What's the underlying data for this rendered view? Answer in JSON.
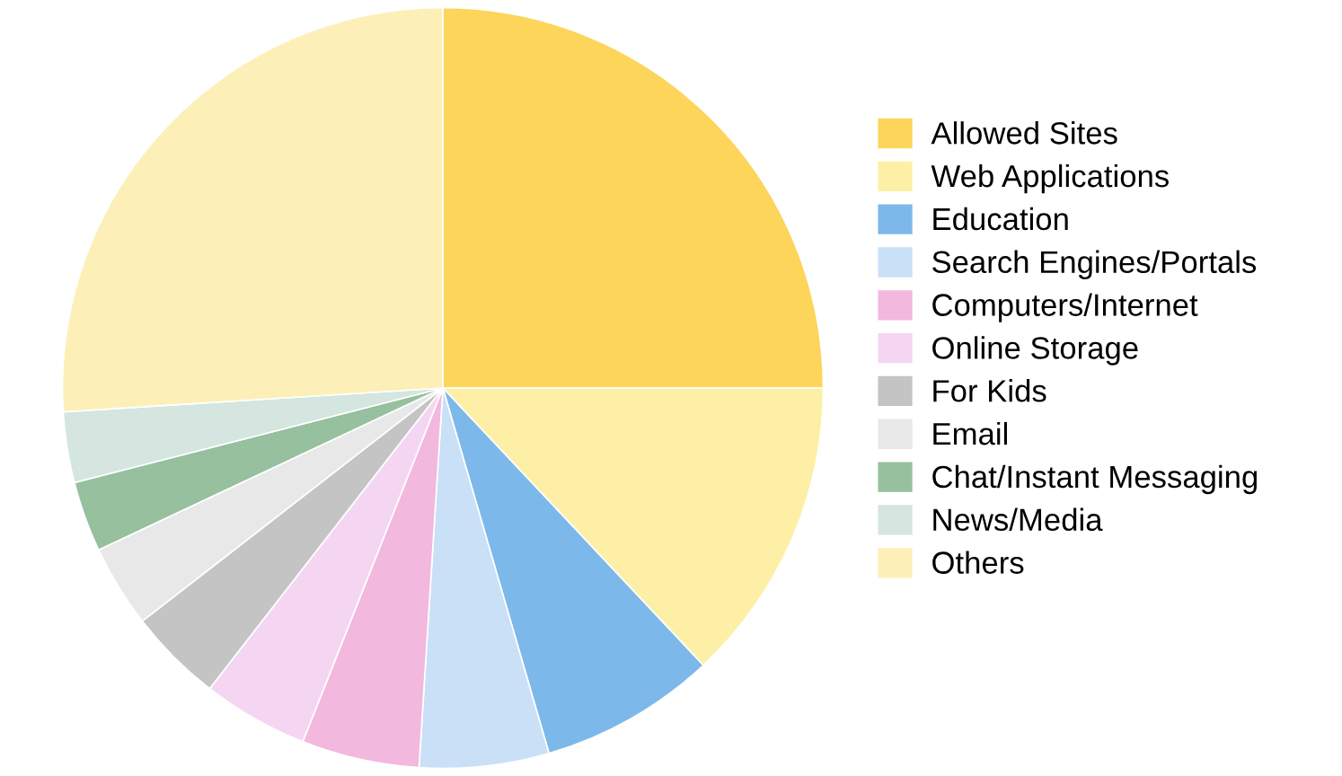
{
  "chart_data": {
    "type": "pie",
    "categories": [
      "Allowed Sites",
      "Web Applications",
      "Education",
      "Search Engines/Portals",
      "Computers/Internet",
      "Online Storage",
      "For Kids",
      "Email",
      "Chat/Instant Messaging",
      "News/Media",
      "Others"
    ],
    "values": [
      25,
      13,
      7.5,
      5.5,
      5,
      4.5,
      4,
      3.5,
      3,
      3,
      26
    ],
    "colors": [
      "#fcd55a",
      "#fdf0a6",
      "#7db8ea",
      "#c9e0f7",
      "#f2b8dd",
      "#f5d6f2",
      "#c4c4c4",
      "#e8e8e8",
      "#96c09e",
      "#d5e5e0",
      "#fcf0b8"
    ],
    "legend": "right"
  }
}
